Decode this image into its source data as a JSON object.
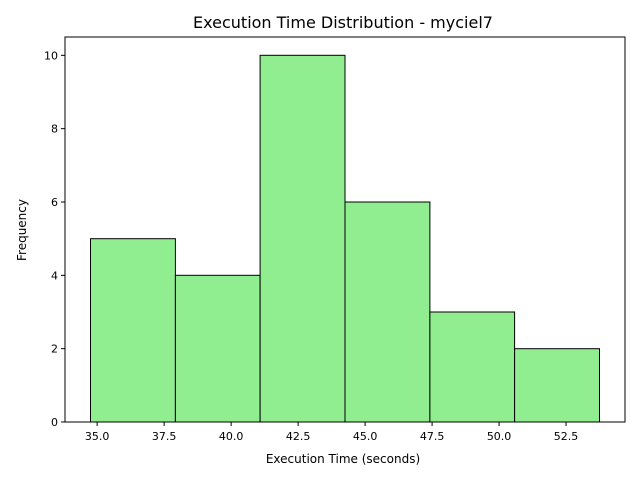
{
  "chart_data": {
    "type": "bar",
    "title": "Execution Time Distribution - myciel7",
    "xlabel": "Execution Time (seconds)",
    "ylabel": "Frequency",
    "bins": [
      {
        "start": 34.75,
        "end": 37.92,
        "count": 5
      },
      {
        "start": 37.92,
        "end": 41.08,
        "count": 4
      },
      {
        "start": 41.08,
        "end": 44.25,
        "count": 10
      },
      {
        "start": 44.25,
        "end": 47.42,
        "count": 6
      },
      {
        "start": 47.42,
        "end": 50.58,
        "count": 3
      },
      {
        "start": 50.58,
        "end": 53.75,
        "count": 2
      }
    ],
    "xlim": [
      33.8,
      54.7
    ],
    "ylim": [
      0,
      10.5
    ],
    "xticks": [
      35.0,
      37.5,
      40.0,
      42.5,
      45.0,
      47.5,
      50.0,
      52.5
    ],
    "xtick_labels": [
      "35.0",
      "37.5",
      "40.0",
      "42.5",
      "45.0",
      "47.5",
      "50.0",
      "52.5"
    ],
    "yticks": [
      0,
      2,
      4,
      6,
      8,
      10
    ],
    "ytick_labels": [
      "0",
      "2",
      "4",
      "6",
      "8",
      "10"
    ],
    "bar_color": "#90ee90",
    "edge_color": "#000000",
    "grid": false,
    "legend": "none"
  }
}
